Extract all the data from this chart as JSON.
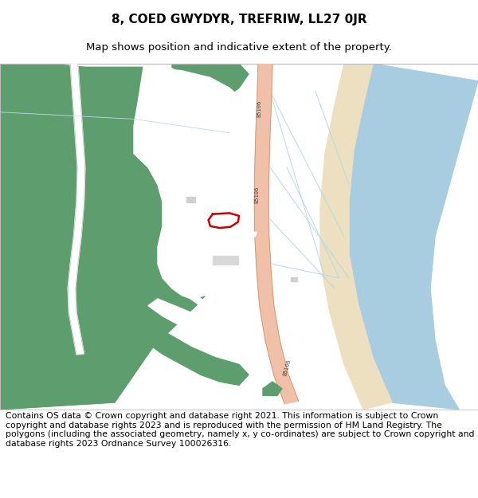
{
  "title": "8, COED GWYDYR, TREFRIW, LL27 0JR",
  "subtitle": "Map shows position and indicative extent of the property.",
  "footer": "Contains OS data © Crown copyright and database right 2021. This information is subject to Crown copyright and database rights 2023 and is reproduced with the permission of HM Land Registry. The polygons (including the associated geometry, namely x, y co-ordinates) are subject to Crown copyright and database rights 2023 Ordnance Survey 100026316.",
  "bg_color": "#ffffff",
  "map_bg": "#ffffff",
  "green_color": "#5e9e6e",
  "road_color": "#f0c0a8",
  "road_edge_color": "#c89070",
  "river_color": "#a8cce0",
  "sand_color": "#ede0c0",
  "field_line_color": "#b8d8e8",
  "red_polygon_color": "#cc0000",
  "road_label": "B5106",
  "title_fontsize": 11,
  "subtitle_fontsize": 9.5,
  "footer_fontsize": 7.8
}
